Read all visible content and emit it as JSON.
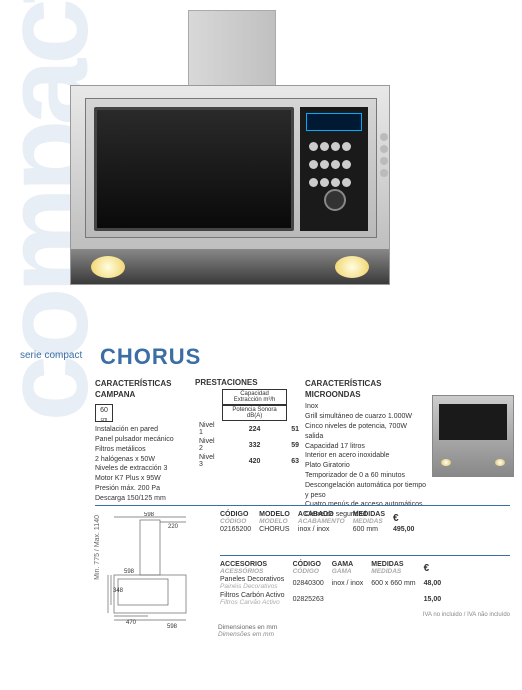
{
  "background_word": "compact",
  "series_label": "serie compact",
  "title": "CHORUS",
  "col1": {
    "heading": "CARACTERÍSTICAS CAMPANA",
    "icon_value": "60",
    "icon_unit": "cm",
    "lines": [
      "Instalación en pared",
      "Panel pulsador mecánico",
      "Filtros metálicos",
      "2 halógenas x 50W",
      "Niveles de extracción 3",
      "Motor K7 Plus x 95W",
      "Presión máx. 200 Pa",
      "Descarga 150/125 mm"
    ]
  },
  "col2": {
    "heading": "PRESTACIONES",
    "head_cap": "Capacidad Extracción m³/h",
    "head_son": "Potencia Sonora dB(A)",
    "rows": [
      {
        "label": "Nivel 1",
        "cap": "224",
        "son": "51"
      },
      {
        "label": "Nivel 2",
        "cap": "332",
        "son": "59"
      },
      {
        "label": "Nivel 3",
        "cap": "420",
        "son": "63"
      }
    ]
  },
  "col3": {
    "heading": "CARACTERÍSTICAS MICROONDAS",
    "lines": [
      "Inox",
      "Grill simultáneo de cuarzo 1.000W",
      "Cinco niveles de potencia, 700W salida",
      "Capacidad 17 litros",
      "Interior en acero inoxidable",
      "Plato Giratorio",
      "Temporizador de 0 a 60 minutos",
      "Descongelación automática por tiempo y peso",
      "Cuatro menús de acceso automáticos",
      "Cierre de seguridad"
    ]
  },
  "sku1": {
    "h_codigo": "CÓDIGO",
    "h_codigo_it": "CÓDIGO",
    "h_modelo": "MODELO",
    "h_modelo_it": "MODELO",
    "h_acabado": "ACABADO",
    "h_acabado_it": "ACABAMENTO",
    "h_medidas": "MEDIDAS",
    "h_medidas_it": "MEDIDAS",
    "euro": "€",
    "codigo": "02165200",
    "modelo": "CHORUS",
    "acabado": "inox / inox",
    "medidas": "600 mm",
    "price": "495,00"
  },
  "sku2": {
    "h_acc": "ACCESORIOS",
    "h_acc_it": "ACESSÓRIOS",
    "h_codigo": "CÓDIGO",
    "h_codigo_it": "CÓDIGO",
    "h_gama": "GAMA",
    "h_gama_it": "GAMA",
    "h_medidas": "MEDIDAS",
    "h_medidas_it": "MEDIDAS",
    "euro": "€",
    "r1_name": "Paneles Decorativos",
    "r1_name_it": "Painéis Decorativos",
    "r1_cod": "02840300",
    "r1_gama": "inox / inox",
    "r1_med": "600 x 660 mm",
    "r1_price": "48,00",
    "r2_name": "Filtros Carbón Activo",
    "r2_name_it": "Filtros Carvão Activo",
    "r2_cod": "02825263",
    "r2_price": "15,00"
  },
  "diagram": {
    "vlabel": "Min. 775 / Max. 1140",
    "d598a": "598",
    "d220": "220",
    "d598b": "598",
    "d748": "748",
    "d348": "348",
    "d470": "470",
    "d598c": "598",
    "note": "Dimensiones en mm",
    "note_it": "Dimensões em mm"
  },
  "footnote": "IVA no incluido / IVA não incluído",
  "colors": {
    "brand": "#3a6ea5",
    "bg_word": "#e8eef5",
    "grey": "#888"
  }
}
